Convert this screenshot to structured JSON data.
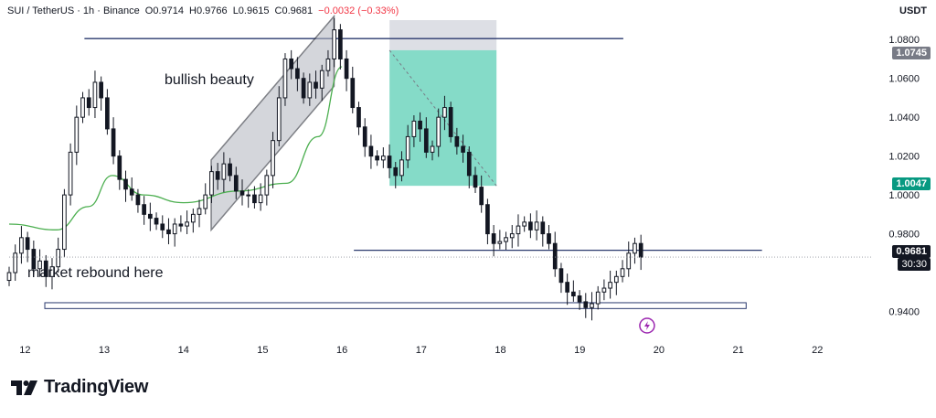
{
  "header": {
    "symbol": "SUI / TetherUS · 1h · Binance",
    "open": "O0.9714",
    "high": "H0.9766",
    "low": "L0.9615",
    "close": "C0.9681",
    "change": "−0.0032 (−0.33%)",
    "change_color": "#f23645"
  },
  "currency_label": "USDT",
  "annotations": {
    "bullish": "bullish beauty",
    "rebound": "market rebound here"
  },
  "price_tags": {
    "target": "1.0745",
    "entry": "1.0047",
    "last": "0.9681",
    "countdown": "30:30"
  },
  "brand": {
    "name": "TradingView"
  },
  "colors": {
    "up": "#131722",
    "down": "#131722",
    "target_zone": "#5ccfb6",
    "stop_zone": "#d1d4dc",
    "channel": "#b2b5be",
    "curve": "#4caf50",
    "level_line": "#2a3a6e",
    "entry_tag": "#089981",
    "target_tag": "#787b86"
  },
  "chart_data": {
    "type": "candlestick",
    "y_axis": {
      "min": 0.928,
      "max": 1.09,
      "ticks": [
        1.08,
        1.06,
        1.04,
        1.02,
        1.0,
        0.98,
        0.94
      ],
      "tick_labels": [
        "1.0800",
        "1.0600",
        "1.0400",
        "1.0200",
        "1.0000",
        "0.9800",
        "0.9400"
      ]
    },
    "x_axis": {
      "ticks": [
        12,
        13,
        14,
        15,
        16,
        17,
        18,
        19,
        20,
        21,
        22
      ],
      "tick_labels": [
        "12",
        "13",
        "14",
        "15",
        "16",
        "17",
        "18",
        "19",
        "20",
        "21",
        "22"
      ],
      "min": 11.8,
      "max": 22.7
    },
    "closes": [
      0.96,
      0.97,
      0.978,
      0.972,
      0.962,
      0.966,
      0.958,
      0.963,
      0.972,
      1.0,
      1.022,
      1.04,
      1.05,
      1.045,
      1.058,
      1.05,
      1.034,
      1.02,
      1.008,
      1.003,
      1.0,
      0.995,
      0.99,
      0.988,
      0.985,
      0.982,
      0.98,
      0.985,
      0.984,
      0.986,
      0.99,
      0.993,
      1.0,
      1.012,
      1.008,
      1.016,
      1.01,
      1.002,
      1.0,
      1.0,
      0.996,
      1.0,
      1.01,
      1.028,
      1.05,
      1.07,
      1.065,
      1.06,
      1.05,
      1.058,
      1.055,
      1.064,
      1.07,
      1.085,
      1.07,
      1.06,
      1.045,
      1.035,
      1.025,
      1.02,
      1.018,
      1.02,
      1.014,
      1.01,
      1.018,
      1.03,
      1.038,
      1.034,
      1.022,
      1.025,
      1.04,
      1.045,
      1.03,
      1.025,
      1.022,
      1.01,
      1.004,
      0.995,
      0.98,
      0.975,
      0.976,
      0.978,
      0.98,
      0.984,
      0.986,
      0.982,
      0.986,
      0.98,
      0.975,
      0.962,
      0.955,
      0.95,
      0.948,
      0.945,
      0.942,
      0.944,
      0.95,
      0.952,
      0.955,
      0.958,
      0.962,
      0.97,
      0.975,
      0.968
    ],
    "x_start": 11.8,
    "x_step": 0.0774,
    "levels": [
      {
        "price": 1.0805,
        "x_from": 12.75,
        "x_to": 19.55
      },
      {
        "price": 0.9715,
        "x_from": 16.15,
        "x_to": 21.3
      }
    ],
    "support_zone": {
      "price_top": 0.9445,
      "price_bottom": 0.9415,
      "x_from": 12.25,
      "x_to": 21.1
    },
    "target_zone": {
      "price_top": 1.0745,
      "price_bottom": 1.0047,
      "x_from": 16.6,
      "x_to": 17.95
    },
    "stop_zone": {
      "price_top": 1.09,
      "price_bottom": 1.0745,
      "x_from": 16.6,
      "x_to": 17.95
    },
    "channel": {
      "x_from": 14.35,
      "x_to": 15.9,
      "low_start": 0.982,
      "low_end": 1.056,
      "high_start": 1.018,
      "high_end": 1.092
    },
    "cup_curve": [
      [
        11.8,
        0.985
      ],
      [
        12.4,
        0.982
      ],
      [
        12.8,
        0.994
      ],
      [
        13.1,
        1.01
      ],
      [
        13.5,
        1.0
      ],
      [
        14.0,
        0.996
      ],
      [
        14.7,
        1.002
      ],
      [
        15.3,
        1.006
      ],
      [
        15.7,
        1.03
      ],
      [
        16.0,
        1.066
      ]
    ]
  }
}
